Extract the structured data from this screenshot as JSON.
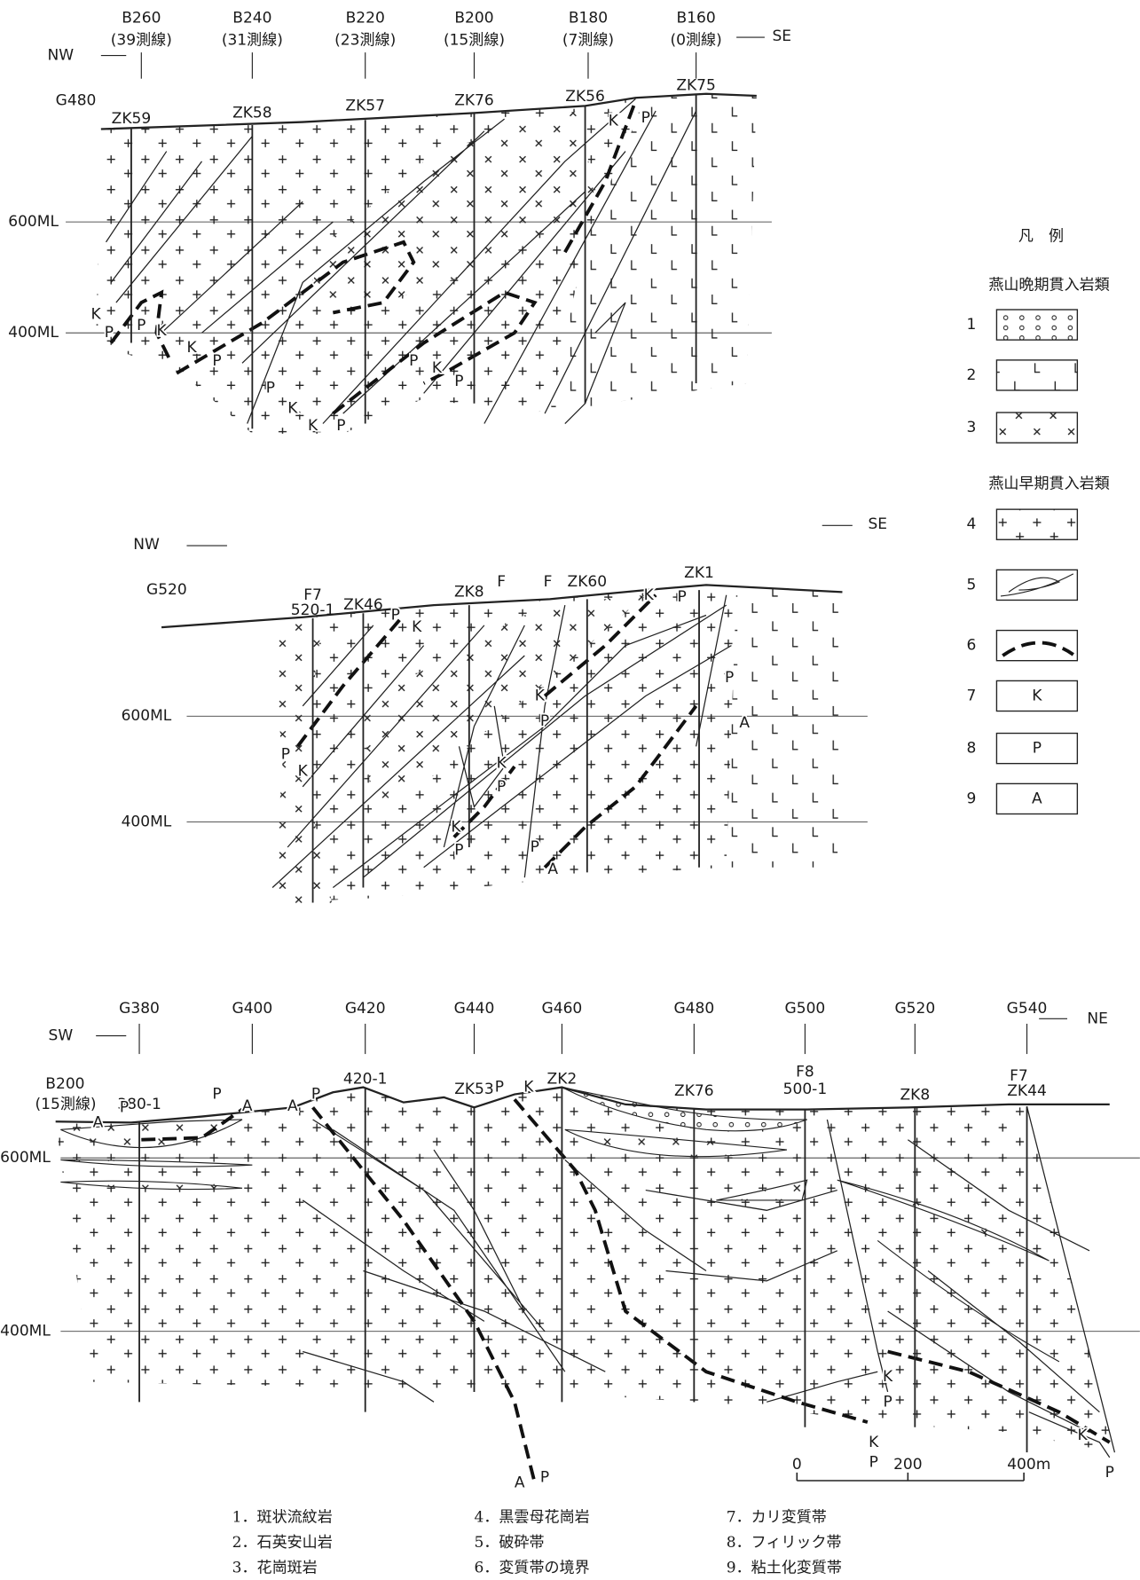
{
  "sections": [
    {
      "title": "G480",
      "left_dir": "NW",
      "right_dir": "SE",
      "survey_lines": [
        {
          "label": "B260",
          "sub": "(39測線)"
        },
        {
          "label": "B240",
          "sub": "(31測線)"
        },
        {
          "label": "B220",
          "sub": "(23測線)"
        },
        {
          "label": "B200",
          "sub": "(15測線)"
        },
        {
          "label": "B180",
          "sub": "(7測線)"
        },
        {
          "label": "B160",
          "sub": "(0測線)"
        }
      ],
      "drillholes": [
        "ZK59",
        "ZK58",
        "ZK57",
        "ZK76",
        "ZK56",
        "ZK75"
      ],
      "levels": [
        "600ML",
        "400ML"
      ],
      "zone_labels": [
        "K",
        "P",
        "P",
        "K",
        "K",
        "P",
        "P",
        "K",
        "K",
        "P",
        "P",
        "K",
        "P",
        "K",
        "P"
      ]
    },
    {
      "title": "G520",
      "left_dir": "NW",
      "right_dir": "SE",
      "faults": [
        "F7",
        "F",
        "F"
      ],
      "drillholes": [
        "520-1",
        "ZK46",
        "ZK8",
        "ZK60",
        "ZK1"
      ],
      "levels": [
        "600ML",
        "400ML"
      ],
      "zone_labels": [
        "P",
        "K",
        "K",
        "P",
        "K",
        "P",
        "K",
        "P",
        "P",
        "A",
        "P",
        "K",
        "A",
        "P",
        "K",
        "P"
      ]
    },
    {
      "title": "B200",
      "subtitle": "(15測線)",
      "left_dir": "SW",
      "right_dir": "NE",
      "survey_lines": [
        {
          "label": "G380"
        },
        {
          "label": "G400"
        },
        {
          "label": "G420"
        },
        {
          "label": "G440"
        },
        {
          "label": "G460"
        },
        {
          "label": "G480"
        },
        {
          "label": "G500"
        },
        {
          "label": "G520"
        },
        {
          "label": "G540"
        }
      ],
      "faults": [
        "F8",
        "F7"
      ],
      "drillholes": [
        "380-1",
        "420-1",
        "ZK53",
        "ZK2",
        "ZK76",
        "500-1",
        "ZK8",
        "ZK44"
      ],
      "levels": [
        "600ML",
        "400ML"
      ],
      "zone_labels": [
        "A",
        "P",
        "P",
        "A",
        "A",
        "P",
        "P",
        "K",
        "K",
        "P",
        "K",
        "P",
        "K",
        "P",
        "A",
        "P"
      ]
    }
  ],
  "legend": {
    "title": "凡　例",
    "groups": [
      {
        "title": "燕山晩期貫入岩類",
        "items": [
          {
            "number": "1"
          },
          {
            "number": "2"
          },
          {
            "number": "3"
          }
        ]
      },
      {
        "title": "燕山早期貫入岩類",
        "items": [
          {
            "number": "4"
          },
          {
            "number": "5"
          },
          {
            "number": "6"
          },
          {
            "number": "7",
            "symbol": "K"
          },
          {
            "number": "8",
            "symbol": "P"
          },
          {
            "number": "9",
            "symbol": "A"
          }
        ]
      }
    ]
  },
  "scale_bar": [
    "0",
    "200",
    "400m"
  ],
  "captions": [
    "1．斑状流紋岩",
    "2．石英安山岩",
    "3．花崗斑岩",
    "4．黒雲母花崗岩",
    "5．破砕帯",
    "6．変質帯の境界",
    "7．カリ変質帯",
    "8．フィリック帯",
    "9．粘土化変質帯"
  ]
}
